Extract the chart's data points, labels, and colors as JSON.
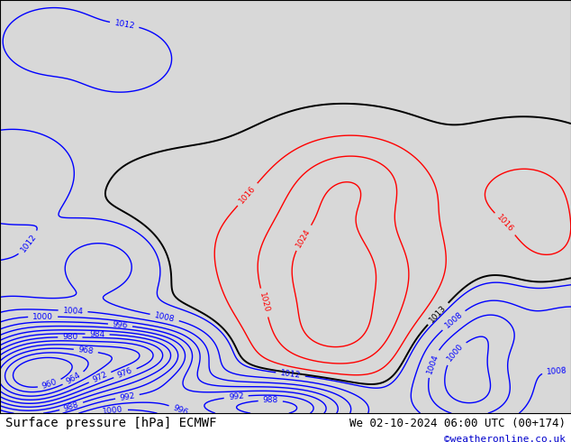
{
  "title": "Surface pressure [hPa] ECMWF",
  "date_label": "We 02-10-2024 06:00 UTC (00+174)",
  "credit": "©weatheronline.co.uk",
  "bg_color": "#d8d8d8",
  "land_color": "#aade87",
  "ocean_color": "#d8d8d8",
  "fig_width": 6.34,
  "fig_height": 4.9,
  "dpi": 100,
  "title_fontsize": 10,
  "label_fontsize": 9,
  "credit_fontsize": 8,
  "contour_blue_color": "#0000ff",
  "contour_red_color": "#ff0000",
  "contour_black_color": "#000000",
  "contour_linewidth": 1.0,
  "map_extent": [
    100,
    185,
    -58,
    12
  ]
}
